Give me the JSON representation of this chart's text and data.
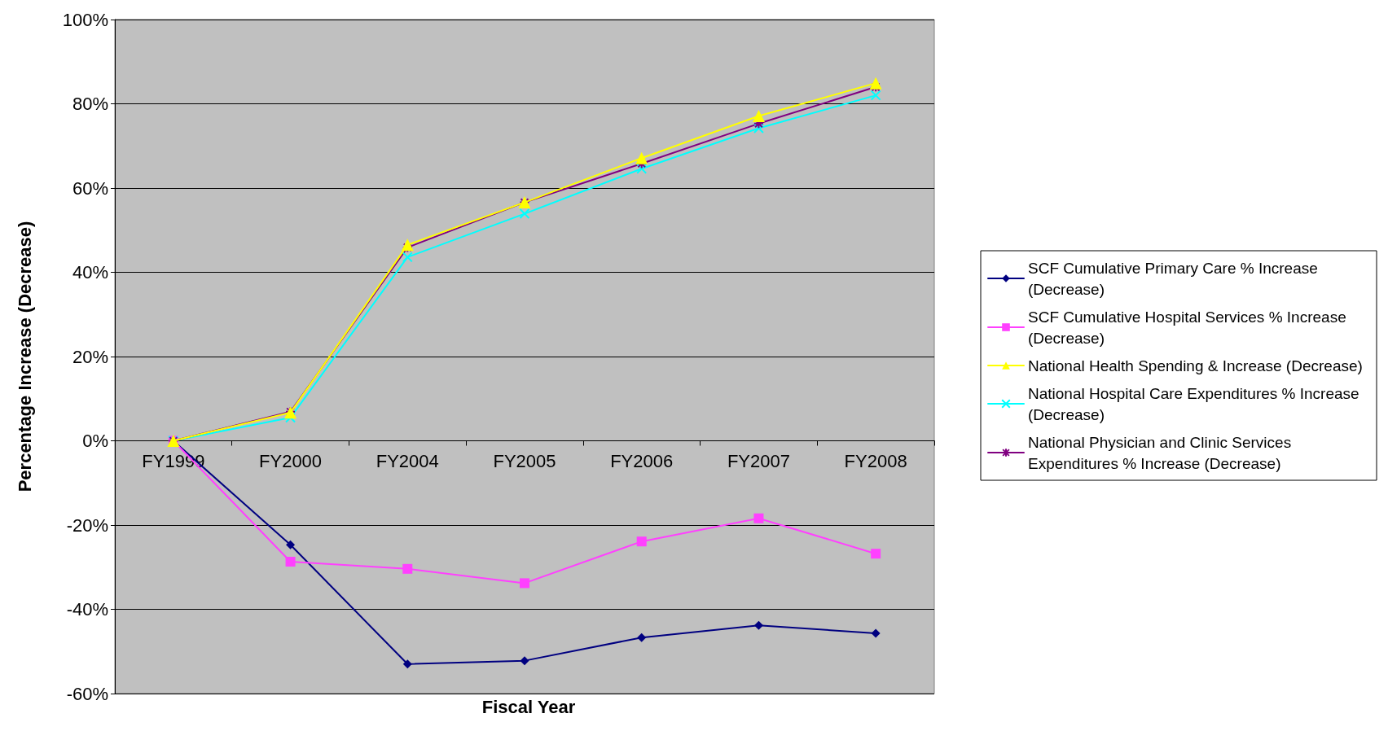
{
  "chart_data": {
    "type": "line",
    "xlabel": "Fiscal Year",
    "ylabel": "Percentage Increase (Decrease)",
    "categories": [
      "FY1999",
      "FY2000",
      "FY2004",
      "FY2005",
      "FY2006",
      "FY2007",
      "FY2008"
    ],
    "ylim": [
      -60,
      100
    ],
    "yticks": [
      {
        "value": -60,
        "label": "-60%"
      },
      {
        "value": -40,
        "label": "-40%"
      },
      {
        "value": -20,
        "label": "-20%"
      },
      {
        "value": 0,
        "label": "0%"
      },
      {
        "value": 20,
        "label": "20%"
      },
      {
        "value": 40,
        "label": "40%"
      },
      {
        "value": 60,
        "label": "60%"
      },
      {
        "value": 80,
        "label": "80%"
      },
      {
        "value": 100,
        "label": "100%"
      }
    ],
    "grid": "y",
    "legend": "right",
    "series": [
      {
        "name": "SCF Cumulative Primary Care % Increase (Decrease)",
        "color": "#000080",
        "marker": "diamond",
        "values": [
          0,
          -24.7,
          -53,
          -52.2,
          -46.7,
          -43.8,
          -45.7
        ]
      },
      {
        "name": "SCF Cumulative Hospital Services % Increase (Decrease)",
        "color": "#ff40ff",
        "marker": "square",
        "values": [
          0,
          -28.7,
          -30.4,
          -33.8,
          -23.9,
          -18.4,
          -26.8
        ]
      },
      {
        "name": "National Health Spending & Increase (Decrease)",
        "color": "#ffff00",
        "marker": "triangle",
        "values": [
          0,
          6.7,
          46.5,
          56.6,
          67.1,
          77.1,
          84.9
        ]
      },
      {
        "name": "National Hospital Care Expenditures % Increase (Decrease)",
        "color": "#00ffff",
        "marker": "cross",
        "values": [
          0,
          5.5,
          43.6,
          53.9,
          64.6,
          74.2,
          82
        ]
      },
      {
        "name": "National Physician and Clinic Services Expenditures % Increase (Decrease)",
        "color": "#800080",
        "marker": "star",
        "values": [
          0,
          6.9,
          45.9,
          56.6,
          65.8,
          75.3,
          84
        ]
      }
    ]
  }
}
